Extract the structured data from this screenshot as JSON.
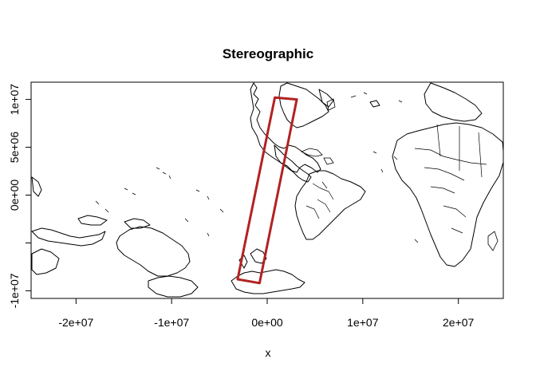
{
  "chart_data": {
    "type": "map",
    "title": "Stereographic",
    "xlabel": "x",
    "ylabel": "",
    "xlim": [
      -24700000,
      24700000
    ],
    "ylim": [
      -10800000,
      11800000
    ],
    "x_ticks": [
      -20000000,
      -10000000,
      0,
      10000000,
      20000000
    ],
    "x_tick_labels": [
      "-2e+07",
      "-1e+07",
      "0e+00",
      "1e+07",
      "2e+07"
    ],
    "y_ticks": [
      -10000000,
      -5000000,
      0,
      5000000,
      10000000
    ],
    "y_tick_labels": [
      "-1e+07",
      "",
      "0e+00",
      "5e+06",
      "1e+07"
    ],
    "overlay_polygon": {
      "color": "#b22222",
      "points": [
        [
          800000,
          10200000
        ],
        [
          3100000,
          10000000
        ],
        [
          -800000,
          -9200000
        ],
        [
          -3100000,
          -8800000
        ]
      ]
    },
    "grid": false
  }
}
